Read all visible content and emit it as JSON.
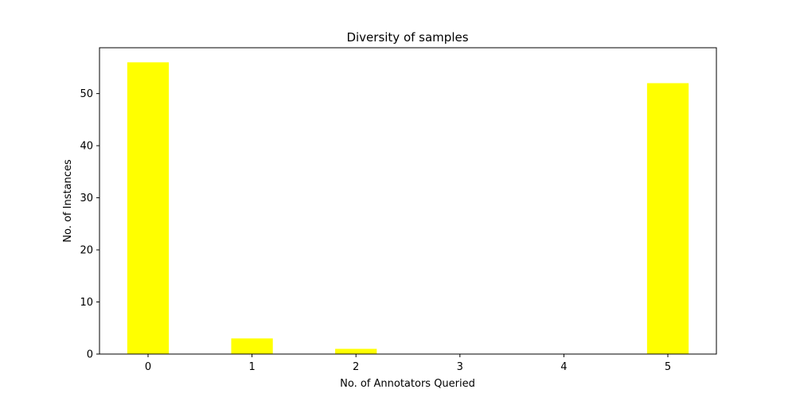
{
  "chart_data": {
    "type": "bar",
    "title": "Diversity of samples",
    "xlabel": "No. of Annotators Queried",
    "ylabel": "No. of Instances",
    "categories": [
      "0",
      "1",
      "2",
      "3",
      "4",
      "5"
    ],
    "values": [
      56,
      3,
      1,
      0,
      0,
      52
    ],
    "ylim": [
      0,
      58.8
    ],
    "yticks": [
      "0",
      "10",
      "20",
      "30",
      "40",
      "50"
    ],
    "bar_color": "#ffff00",
    "grid": false,
    "legend": "none"
  }
}
